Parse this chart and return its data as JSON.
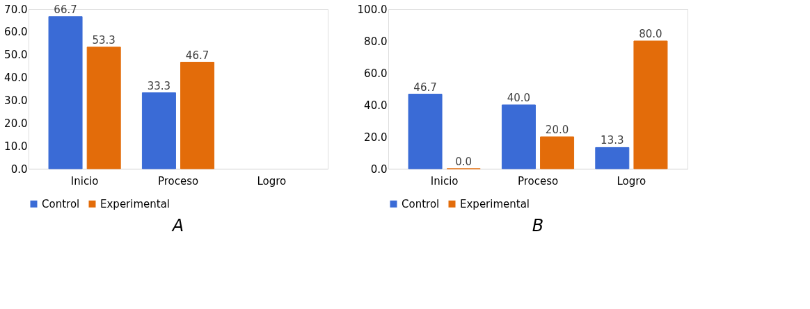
{
  "chart_data": [
    {
      "type": "bar",
      "title": "A",
      "categories": [
        "Inicio",
        "Proceso",
        "Logro"
      ],
      "series": [
        {
          "name": "Control",
          "color": "#3a6bd6",
          "values": [
            66.7,
            33.3,
            null
          ],
          "value_labels": [
            "66.7",
            "33.3",
            null
          ]
        },
        {
          "name": "Experimental",
          "color": "#e36c0a",
          "values": [
            53.3,
            46.7,
            null
          ],
          "value_labels": [
            "53.3",
            "46.7",
            null
          ]
        }
      ],
      "ylim": [
        0,
        70
      ],
      "yticks": [
        {
          "value": 0,
          "label": "0.0"
        },
        {
          "value": 10,
          "label": "10.0"
        },
        {
          "value": 20,
          "label": "20.0"
        },
        {
          "value": 30,
          "label": "30.0"
        },
        {
          "value": 40,
          "label": "40.0"
        },
        {
          "value": 50,
          "label": "50.0"
        },
        {
          "value": 60,
          "label": "60.0"
        },
        {
          "value": 70,
          "label": "70.0"
        }
      ],
      "grid": false,
      "legend": "bottom"
    },
    {
      "type": "bar",
      "title": "B",
      "categories": [
        "Inicio",
        "Proceso",
        "Logro"
      ],
      "series": [
        {
          "name": "Control",
          "color": "#3a6bd6",
          "values": [
            46.7,
            40.0,
            13.3
          ],
          "value_labels": [
            "46.7",
            "40.0",
            "13.3"
          ]
        },
        {
          "name": "Experimental",
          "color": "#e36c0a",
          "values": [
            0.0,
            20.0,
            80.0
          ],
          "value_labels": [
            "0.0",
            "20.0",
            "80.0"
          ]
        }
      ],
      "ylim": [
        0,
        100
      ],
      "yticks": [
        {
          "value": 0,
          "label": "0.0"
        },
        {
          "value": 20,
          "label": "20.0"
        },
        {
          "value": 40,
          "label": "40.0"
        },
        {
          "value": 60,
          "label": "60.0"
        },
        {
          "value": 80,
          "label": "80.0"
        },
        {
          "value": 100,
          "label": "100.0"
        }
      ],
      "grid": false,
      "legend": "bottom"
    }
  ]
}
